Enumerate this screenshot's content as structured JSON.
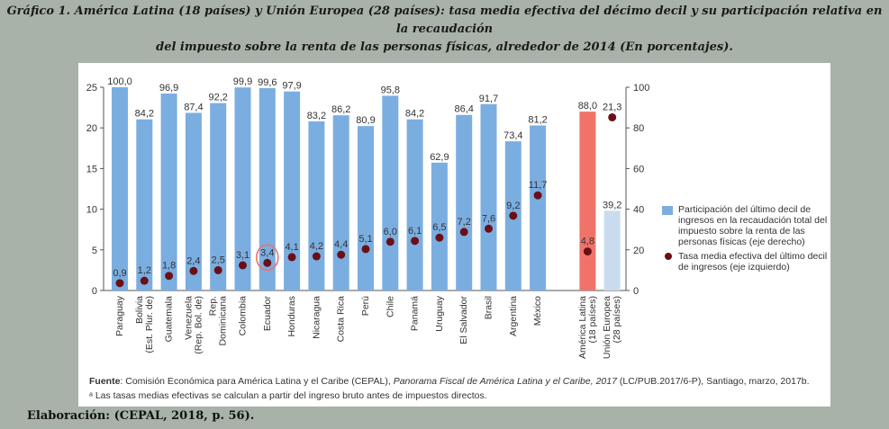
{
  "title_line1": "Gráfico 1. América Latina (18 países) y Unión Europea (28 países): tasa media efectiva del décimo decil y su participación relativa en la recaudación",
  "title_line2": "del impuesto sobre la renta de las personas físicas, alrededor de 2014 (En porcentajes).",
  "footer": "Elaboración: (CEPAL, 2018, p. 56).",
  "source_label": "Fuente",
  "source_text_1": ": Comisión Económica para América Latina y el Caribe (CEPAL), ",
  "source_text_italic": "Panorama Fiscal de América Latina y el Caribe, 2017",
  "source_text_2": " (LC/PUB.2017/6-P), Santiago, marzo, 2017b.",
  "note": "ᵃ Las tasas medias efectivas se calculan a partir del ingreso bruto antes de impuestos directos.",
  "legend": {
    "bars": "Participación del último decil de ingresos en la recaudación total del impuesto sobre la renta de las personas físicas (eje derecho)",
    "dots": "Tasa media efectiva del último decil de ingresos (eje izquierdo)"
  },
  "colors": {
    "bar": "#7baee0",
    "bar_latam": "#f0736a",
    "bar_eu": "#c9dcef",
    "dot": "#6b0f17",
    "highlight": "#f07070"
  },
  "chart_data": {
    "type": "bar",
    "title": "América Latina (18 países) y Unión Europea (28 países): tasa media efectiva del décimo decil y su participación relativa en la recaudación del impuesto sobre la renta de las personas físicas, alrededor de 2014",
    "categories": [
      "Paraguay",
      "Bolivia\n(Est. Plur. de)",
      "Guatemala",
      "Venezuela\n(Rep. Bol. de)",
      "Rep.\nDominicana",
      "Colombia",
      "Ecuador",
      "Honduras",
      "Nicaragua",
      "Costa Rica",
      "Perú",
      "Chile",
      "Panamá",
      "Uruguay",
      "El Salvador",
      "Brasil",
      "Argentina",
      "México",
      "América Latina\n(18 países)",
      "Unión Europea\n(28 países)"
    ],
    "series": [
      {
        "name": "Participación del último decil de ingresos en la recaudación total del impuesto sobre la renta de las personas físicas (eje derecho)",
        "axis": "right",
        "kind": "bar",
        "values": [
          100.0,
          84.2,
          96.9,
          87.4,
          92.2,
          99.9,
          99.6,
          97.9,
          83.2,
          86.2,
          80.9,
          95.8,
          84.2,
          62.9,
          86.4,
          91.7,
          73.4,
          81.2,
          88.0,
          39.2
        ]
      },
      {
        "name": "Tasa media efectiva del último decil de ingresos (eje izquierdo)",
        "axis": "left",
        "kind": "scatter",
        "values": [
          0.9,
          1.2,
          1.8,
          2.4,
          2.5,
          3.1,
          3.4,
          4.1,
          4.2,
          4.4,
          5.1,
          6.0,
          6.1,
          6.5,
          7.2,
          7.6,
          9.2,
          11.7,
          4.8,
          21.3
        ]
      }
    ],
    "left_axis": {
      "range": [
        0,
        25
      ],
      "ticks": [
        0,
        5,
        10,
        15,
        20,
        25
      ]
    },
    "right_axis": {
      "range": [
        0,
        100
      ],
      "ticks": [
        0,
        20,
        40,
        60,
        80,
        100
      ]
    },
    "legend_position": "right",
    "grid": false
  }
}
